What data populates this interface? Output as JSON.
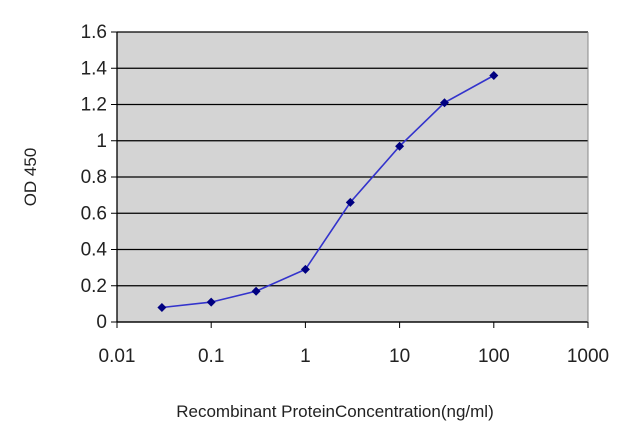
{
  "chart_data": {
    "type": "line",
    "title": "",
    "xlabel": "Recombinant ProteinConcentration(ng/ml)",
    "ylabel": "OD 450",
    "x_scale": "log",
    "xlim": [
      0.01,
      1000
    ],
    "ylim": [
      0,
      1.6
    ],
    "x_ticks": [
      "0.01",
      "0.1",
      "1",
      "10",
      "100",
      "1000"
    ],
    "y_ticks": [
      "0",
      "0.2",
      "0.4",
      "0.6",
      "0.8",
      "1",
      "1.2",
      "1.4",
      "1.6"
    ],
    "grid": "horizontal",
    "series": [
      {
        "x": [
          0.03,
          0.1,
          0.3,
          1,
          3,
          10,
          30,
          100
        ],
        "y": [
          0.08,
          0.11,
          0.17,
          0.29,
          0.66,
          0.97,
          1.21,
          1.36
        ],
        "color": "#3333cc",
        "marker_color": "#000080",
        "marker": "diamond"
      }
    ],
    "plot_background": "#d4d4d4"
  }
}
